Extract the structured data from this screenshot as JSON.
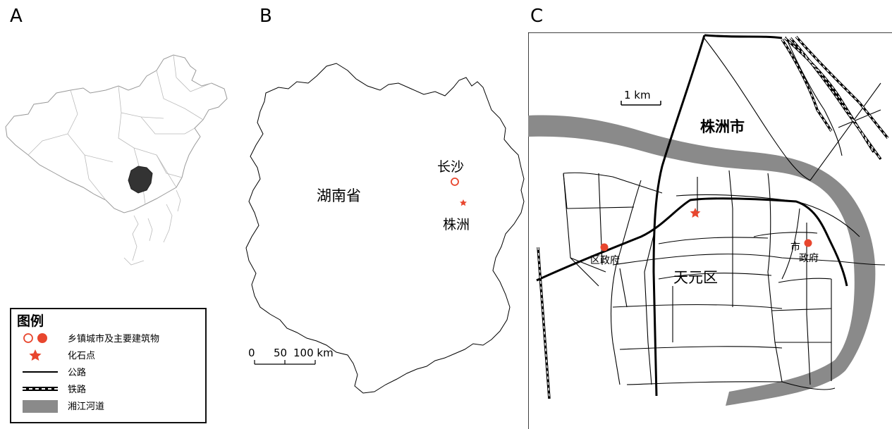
{
  "panels": {
    "a": "A",
    "b": "B",
    "c": "C"
  },
  "panel_b": {
    "province": "湖南省",
    "city_1": "长沙",
    "city_2": "株洲",
    "scale": {
      "ticks": [
        "0",
        "50",
        "100 km"
      ]
    }
  },
  "panel_c": {
    "city": "株洲市",
    "district": "天元区",
    "district_gov": "区政府",
    "city_gov_line1": "市",
    "city_gov_line2": "政府",
    "scale": "1 km"
  },
  "legend": {
    "title": "图例",
    "items": [
      {
        "label": "乡镇城市及主要建筑物",
        "symbol": "town-circles"
      },
      {
        "label": "化石点",
        "symbol": "star"
      },
      {
        "label": "公路",
        "symbol": "road"
      },
      {
        "label": "铁路",
        "symbol": "railway"
      },
      {
        "label": "湘江河道",
        "symbol": "river"
      }
    ]
  },
  "colors": {
    "accent": "#e8462e",
    "river": "#8a8a8a",
    "highlight": "#333333"
  }
}
